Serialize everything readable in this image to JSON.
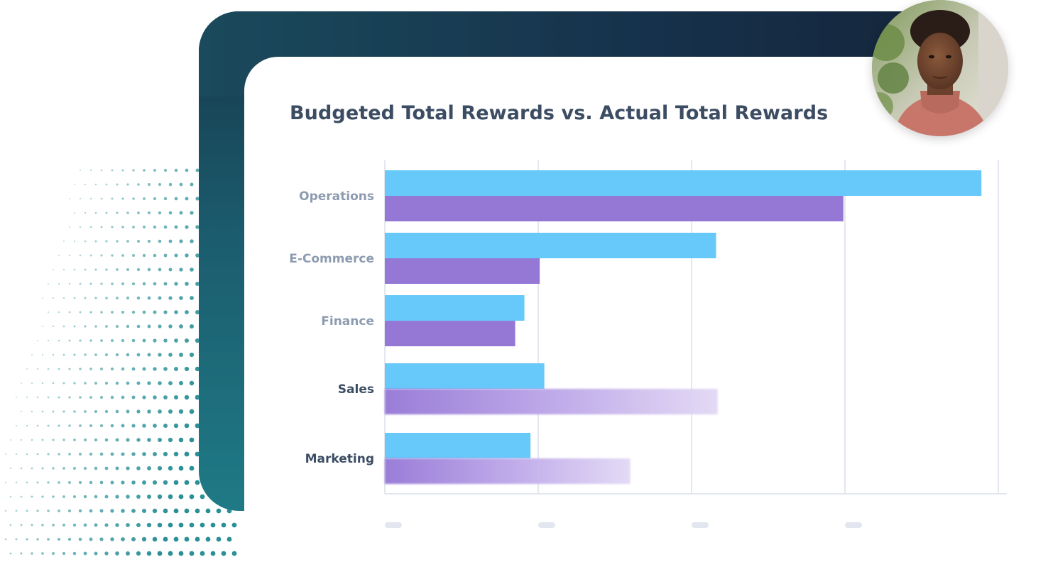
{
  "chart_data": {
    "type": "bar",
    "orientation": "horizontal",
    "title": "Budgeted Total Rewards vs. Actual Total Rewards",
    "categories": [
      "Operations",
      "E-Commerce",
      "Finance",
      "Sales",
      "Marketing"
    ],
    "series": [
      {
        "values": [
          3.89,
          2.16,
          0.91,
          1.04,
          0.95
        ]
      },
      {
        "values": [
          2.99,
          1.01,
          0.85,
          2.17,
          1.6
        ]
      }
    ],
    "xlim": [
      0,
      4.06
    ],
    "grid": true,
    "legend": "none"
  },
  "colors": {
    "budgeted": "#66c9fa",
    "actual": "#9578d6",
    "actual_faded": "#dcd2f2",
    "label_muted": "#8d9bb0",
    "label_strong": "#3c4d63",
    "grid": "#e3e7ee",
    "tick_placeholder": "#e2e6ee"
  },
  "highlighted_categories": [
    "Sales",
    "Marketing"
  ],
  "avatar": {
    "icon": "person-portrait-icon"
  }
}
